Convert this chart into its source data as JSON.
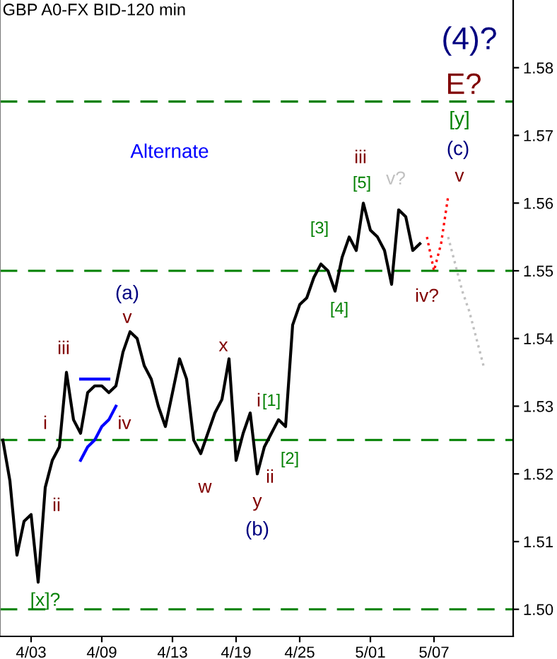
{
  "chart_data": {
    "type": "line",
    "title": "GBP A0-FX BID-120 min",
    "categories": [
      null,
      null,
      null,
      null,
      "4/03",
      null,
      null,
      null,
      null,
      null,
      null,
      null,
      null,
      null,
      "4/09",
      null,
      null,
      null,
      null,
      null,
      null,
      null,
      null,
      null,
      "4/13",
      null,
      null,
      null,
      null,
      null,
      null,
      null,
      null,
      "4/19",
      null,
      null,
      null,
      null,
      null,
      null,
      null,
      null,
      "4/25",
      null,
      null,
      null,
      null,
      null,
      null,
      null,
      null,
      null,
      "5/01",
      null,
      null,
      null,
      null,
      null,
      null,
      null,
      null,
      "5/07",
      null,
      null,
      null,
      null,
      null,
      null,
      null,
      null,
      null,
      null,
      null
    ],
    "ylim": [
      1.496,
      1.59
    ],
    "yticks": [
      {
        "value": 1.5,
        "label": "1.50"
      },
      {
        "value": 1.51,
        "label": "1.51"
      },
      {
        "value": 1.52,
        "label": "1.52"
      },
      {
        "value": 1.53,
        "label": "1.53"
      },
      {
        "value": 1.54,
        "label": "1.54"
      },
      {
        "value": 1.55,
        "label": "1.55"
      },
      {
        "value": 1.56,
        "label": "1.56"
      },
      {
        "value": 1.57,
        "label": "1.57"
      },
      {
        "value": 1.58,
        "label": "1.58"
      }
    ],
    "series": [
      {
        "color": "#000000",
        "line_style": "solid",
        "values": [
          1.525,
          1.519,
          1.508,
          1.513,
          1.514,
          1.504,
          1.518,
          1.522,
          1.524,
          1.535,
          1.528,
          1.526,
          1.532,
          1.533,
          1.533,
          1.532,
          1.533,
          1.538,
          1.541,
          1.54,
          1.536,
          1.534,
          1.53,
          1.527,
          1.532,
          1.537,
          1.534,
          1.525,
          1.523,
          1.526,
          1.529,
          1.531,
          1.537,
          1.522,
          1.526,
          1.529,
          1.52,
          1.524,
          1.526,
          1.528,
          1.527,
          1.542,
          1.545,
          1.546,
          1.549,
          1.551,
          1.55,
          1.547,
          1.552,
          1.555,
          1.553,
          1.56,
          1.556,
          1.555,
          1.553,
          1.548,
          1.559,
          1.558,
          1.553,
          1.554,
          null,
          null,
          null,
          null,
          null,
          null,
          null,
          null,
          null,
          null,
          null,
          null,
          null
        ]
      },
      {
        "color": "#ff0000",
        "line_style": "dotted",
        "values": [
          null,
          null,
          null,
          null,
          null,
          null,
          null,
          null,
          null,
          null,
          null,
          null,
          null,
          null,
          null,
          null,
          null,
          null,
          null,
          null,
          null,
          null,
          null,
          null,
          null,
          null,
          null,
          null,
          null,
          null,
          null,
          null,
          null,
          null,
          null,
          null,
          null,
          null,
          null,
          null,
          null,
          null,
          null,
          null,
          null,
          null,
          null,
          null,
          null,
          null,
          null,
          null,
          null,
          null,
          null,
          null,
          null,
          null,
          null,
          null,
          1.555,
          1.55,
          1.554,
          1.561,
          null,
          null,
          null,
          null,
          null,
          null,
          null,
          null,
          null
        ]
      },
      {
        "color": "#c0c0c0",
        "line_style": "dotted",
        "values": [
          null,
          null,
          null,
          null,
          null,
          null,
          null,
          null,
          null,
          null,
          null,
          null,
          null,
          null,
          null,
          null,
          null,
          null,
          null,
          null,
          null,
          null,
          null,
          null,
          null,
          null,
          null,
          null,
          null,
          null,
          null,
          null,
          null,
          null,
          null,
          null,
          null,
          null,
          null,
          null,
          null,
          null,
          null,
          null,
          null,
          null,
          null,
          null,
          null,
          null,
          null,
          null,
          null,
          null,
          null,
          null,
          null,
          null,
          null,
          null,
          null,
          null,
          null,
          1.555,
          1.551,
          1.547,
          1.544,
          1.54,
          1.536,
          null,
          null,
          null,
          null
        ]
      },
      {
        "color": "#0000ff",
        "line_style": "solid",
        "values": [
          null,
          null,
          null,
          null,
          null,
          null,
          null,
          null,
          null,
          null,
          null,
          1.522,
          1.524,
          1.525,
          1.527,
          1.528,
          1.53,
          null,
          null,
          null,
          null,
          null,
          null,
          null,
          null,
          null,
          null,
          null,
          null,
          null,
          null,
          null,
          null,
          null,
          null,
          null,
          null,
          null,
          null,
          null,
          null,
          null,
          null,
          null,
          null,
          null,
          null,
          null,
          null,
          null,
          null,
          null,
          null,
          null,
          null,
          null,
          null,
          null,
          null,
          null,
          null,
          null,
          null,
          null,
          null,
          null,
          null,
          null,
          null,
          null,
          null,
          null,
          null
        ]
      },
      {
        "color": "#0000ff",
        "line_style": "solid",
        "values": [
          null,
          null,
          null,
          null,
          null,
          null,
          null,
          null,
          null,
          null,
          null,
          1.534,
          1.534,
          1.534,
          1.534,
          1.534,
          null,
          null,
          null,
          null,
          null,
          null,
          null,
          null,
          null,
          null,
          null,
          null,
          null,
          null,
          null,
          null,
          null,
          null,
          null,
          null,
          null,
          null,
          null,
          null,
          null,
          null,
          null,
          null,
          null,
          null,
          null,
          null,
          null,
          null,
          null,
          null,
          null,
          null,
          null,
          null,
          null,
          null,
          null,
          null,
          null,
          null,
          null,
          null,
          null,
          null,
          null,
          null,
          null,
          null,
          null,
          null,
          null
        ]
      }
    ],
    "ref_lines": [
      {
        "axis": "y",
        "value": 1.5,
        "color": "#008000",
        "line_style": "dashed"
      },
      {
        "axis": "y",
        "value": 1.525,
        "color": "#008000",
        "line_style": "dashed"
      },
      {
        "axis": "y",
        "value": 1.55,
        "color": "#008000",
        "line_style": "dashed"
      },
      {
        "axis": "y",
        "value": 1.575,
        "color": "#008000",
        "line_style": "dashed"
      }
    ],
    "annotations": [
      "Alternate",
      "i",
      "ii",
      "iii",
      "iv",
      "v",
      "(a)",
      "x",
      "w",
      "i",
      "[1]",
      "ii",
      "y",
      "(b)",
      "[2]",
      "[x]?",
      "[3]",
      "[4]",
      "[5]",
      "iii",
      "v?",
      "iv?",
      "v",
      "(c)",
      "[y]",
      "E?",
      "(4)?"
    ]
  }
}
